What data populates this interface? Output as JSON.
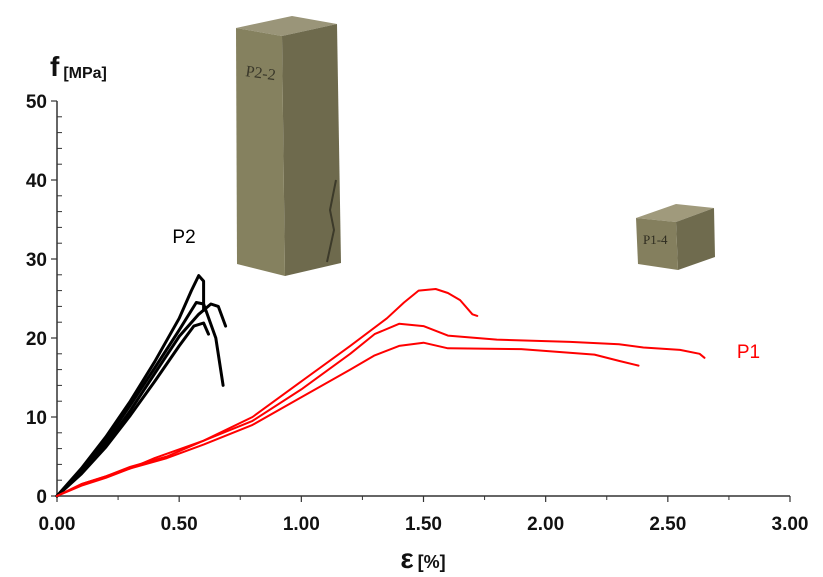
{
  "chart_data": {
    "type": "line",
    "ylabel": {
      "symbol": "f",
      "unit": "[MPa]"
    },
    "xlabel": {
      "symbol": "ε",
      "unit": "[%]"
    },
    "xlim": [
      0,
      3
    ],
    "ylim": [
      0,
      50
    ],
    "x_ticks": [
      "0.00",
      "0.50",
      "1.00",
      "1.50",
      "2.00",
      "2.50",
      "3.00"
    ],
    "y_ticks": [
      "0",
      "10",
      "20",
      "30",
      "40",
      "50"
    ],
    "colors": {
      "P2": "#000000",
      "P1": "#ff0000"
    },
    "series_labels": [
      {
        "text": "P2",
        "x": 0.52,
        "y": 32,
        "color": "#000000"
      },
      {
        "text": "P1",
        "x": 2.83,
        "y": 17.5,
        "color": "#ff0000"
      }
    ],
    "photos": [
      {
        "name": "specimen-p2-photo",
        "text": "P2-2"
      },
      {
        "name": "specimen-p1-photo",
        "text": "P1-4"
      }
    ],
    "series": [
      {
        "group": "P2",
        "color": "#000000",
        "points": [
          [
            0,
            0
          ],
          [
            0.1,
            3.5
          ],
          [
            0.2,
            7.5
          ],
          [
            0.3,
            12
          ],
          [
            0.4,
            17
          ],
          [
            0.5,
            22.5
          ],
          [
            0.55,
            26
          ],
          [
            0.58,
            27.9
          ],
          [
            0.6,
            27.2
          ],
          [
            0.6,
            23.5
          ]
        ]
      },
      {
        "group": "P2",
        "color": "#000000",
        "points": [
          [
            0,
            0
          ],
          [
            0.1,
            3.2
          ],
          [
            0.2,
            7
          ],
          [
            0.3,
            11.5
          ],
          [
            0.4,
            16.2
          ],
          [
            0.5,
            21
          ],
          [
            0.57,
            24.5
          ],
          [
            0.6,
            24.3
          ],
          [
            0.65,
            20
          ],
          [
            0.68,
            14
          ]
        ]
      },
      {
        "group": "P2",
        "color": "#000000",
        "points": [
          [
            0,
            0
          ],
          [
            0.1,
            3
          ],
          [
            0.2,
            6.5
          ],
          [
            0.3,
            10.8
          ],
          [
            0.4,
            15.5
          ],
          [
            0.5,
            20.2
          ],
          [
            0.58,
            23
          ],
          [
            0.63,
            24.3
          ],
          [
            0.66,
            24
          ],
          [
            0.69,
            21.5
          ]
        ]
      },
      {
        "group": "P2",
        "color": "#000000",
        "points": [
          [
            0,
            0
          ],
          [
            0.1,
            2.8
          ],
          [
            0.2,
            6.2
          ],
          [
            0.3,
            10.2
          ],
          [
            0.4,
            14.5
          ],
          [
            0.5,
            19
          ],
          [
            0.56,
            21.5
          ],
          [
            0.6,
            21.9
          ],
          [
            0.62,
            20.5
          ]
        ]
      },
      {
        "group": "P1",
        "color": "#ff0000",
        "points": [
          [
            0,
            0
          ],
          [
            0.1,
            1.5
          ],
          [
            0.2,
            2.5
          ],
          [
            0.3,
            3.5
          ],
          [
            0.4,
            4.8
          ],
          [
            0.6,
            7
          ],
          [
            0.8,
            9.5
          ],
          [
            1.0,
            13.5
          ],
          [
            1.2,
            18
          ],
          [
            1.3,
            20.5
          ],
          [
            1.4,
            21.8
          ],
          [
            1.5,
            21.5
          ],
          [
            1.6,
            20.3
          ],
          [
            1.8,
            19.8
          ],
          [
            2.1,
            19.5
          ],
          [
            2.3,
            19.2
          ],
          [
            2.4,
            18.8
          ],
          [
            2.55,
            18.5
          ],
          [
            2.63,
            18
          ],
          [
            2.65,
            17.5
          ]
        ]
      },
      {
        "group": "P1",
        "color": "#ff0000",
        "points": [
          [
            0,
            0
          ],
          [
            0.1,
            1.5
          ],
          [
            0.2,
            2.5
          ],
          [
            0.3,
            3.7
          ],
          [
            0.45,
            5
          ],
          [
            0.6,
            7
          ],
          [
            0.8,
            10
          ],
          [
            1.0,
            14.5
          ],
          [
            1.2,
            19
          ],
          [
            1.35,
            22.5
          ],
          [
            1.42,
            24.5
          ],
          [
            1.48,
            26
          ],
          [
            1.55,
            26.2
          ],
          [
            1.6,
            25.7
          ],
          [
            1.65,
            24.8
          ],
          [
            1.7,
            23
          ],
          [
            1.72,
            22.8
          ]
        ]
      },
      {
        "group": "P1",
        "color": "#ff0000",
        "points": [
          [
            0,
            0
          ],
          [
            0.1,
            1.3
          ],
          [
            0.2,
            2.3
          ],
          [
            0.3,
            3.5
          ],
          [
            0.45,
            4.8
          ],
          [
            0.6,
            6.5
          ],
          [
            0.8,
            9
          ],
          [
            1.0,
            12.5
          ],
          [
            1.2,
            16
          ],
          [
            1.3,
            17.8
          ],
          [
            1.4,
            19
          ],
          [
            1.5,
            19.4
          ],
          [
            1.6,
            18.7
          ],
          [
            1.9,
            18.6
          ],
          [
            2.2,
            17.9
          ],
          [
            2.3,
            17.1
          ],
          [
            2.38,
            16.5
          ]
        ]
      }
    ]
  }
}
